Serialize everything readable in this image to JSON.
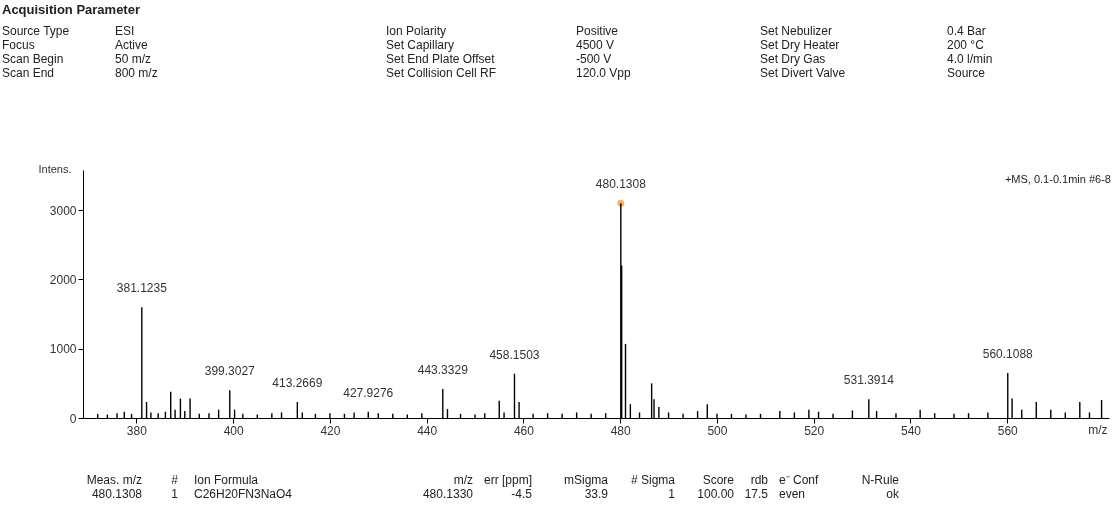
{
  "chart_data": {
    "type": "bar",
    "title": "Acquisition Parameter",
    "xlabel": "m/z",
    "ylabel": "Intens.",
    "x": [
      372,
      374,
      376,
      377.5,
      379,
      381.1235,
      382.1,
      383,
      384.5,
      386,
      387.1,
      388,
      389.1,
      390,
      391.1,
      393,
      395,
      397,
      399.3027,
      400.3,
      402,
      405,
      408,
      410,
      413.2669,
      414.3,
      417,
      420,
      423,
      425,
      427.9276,
      430,
      433,
      436,
      439,
      443.3329,
      444.3,
      447,
      450,
      452,
      455,
      456,
      458.1503,
      459.1,
      462,
      465,
      468,
      471,
      474,
      477,
      480.1308,
      480.3,
      481.1,
      482.1,
      484,
      486.5,
      487,
      488,
      490,
      493,
      496,
      498,
      500,
      503,
      506,
      509,
      513,
      516,
      519,
      521,
      524,
      528,
      531.3914,
      533,
      537,
      542,
      545,
      549,
      552,
      556,
      560.1088,
      561,
      563,
      566,
      569,
      572,
      575,
      577,
      579.5
    ],
    "series": [
      {
        "color": "#000000",
        "values": [
          60,
          50,
          70,
          90,
          60,
          1600,
          230,
          80,
          70,
          90,
          380,
          120,
          280,
          100,
          280,
          60,
          70,
          120,
          400,
          120,
          60,
          50,
          70,
          80,
          230,
          80,
          60,
          70,
          60,
          80,
          90,
          70,
          60,
          50,
          70,
          420,
          130,
          60,
          50,
          70,
          250,
          80,
          640,
          230,
          60,
          70,
          60,
          80,
          60,
          70,
          3100,
          2200,
          1070,
          200,
          80,
          500,
          270,
          160,
          80,
          60,
          100,
          200,
          60,
          60,
          50,
          60,
          100,
          80,
          120,
          90,
          60,
          110,
          270,
          100,
          70,
          120,
          70,
          60,
          70,
          80,
          650,
          280,
          120,
          230,
          120,
          80,
          230,
          80,
          260
        ]
      },
      {
        "type": "scatter",
        "color": "#f5a040",
        "x": [
          480.1308
        ],
        "values": [
          3100
        ]
      }
    ],
    "xlim": [
      370,
      580
    ],
    "ylim": [
      0,
      3580
    ],
    "xticks": [
      380,
      400,
      420,
      440,
      460,
      480,
      500,
      520,
      540,
      560
    ],
    "yticks": [
      0,
      1000,
      2000,
      3000
    ],
    "grid": false,
    "marker": "circle",
    "annotations": [
      {
        "text": "381.1235",
        "x": 381.1235,
        "y": 1600
      },
      {
        "text": "399.3027",
        "x": 399.3027,
        "y": 400
      },
      {
        "text": "413.2669",
        "x": 413.2669,
        "y": 230
      },
      {
        "text": "427.9276",
        "x": 427.9276,
        "y": 90
      },
      {
        "text": "443.3329",
        "x": 443.3329,
        "y": 420
      },
      {
        "text": "458.1503",
        "x": 458.1503,
        "y": 640
      },
      {
        "text": "480.1308",
        "x": 480.1308,
        "y": 3100
      },
      {
        "text": "531.3914",
        "x": 531.3914,
        "y": 270
      },
      {
        "text": "560.1088",
        "x": 560.1088,
        "y": 650
      },
      "+MS, 0.1-0.1min #6-8",
      "Source Type",
      "ESI",
      "Ion Polarity",
      "Positive",
      "Set Nebulizer",
      "0.4 Bar",
      "Focus",
      "Active",
      "Set Capillary",
      "4500 V",
      "Set Dry Heater",
      "200 °C",
      "Scan Begin",
      "50 m/z",
      "Set End Plate Offset",
      "-500 V",
      "Set Dry Gas",
      "4.0 l/min",
      "Scan End",
      "800 m/z",
      "Set Collision Cell RF",
      "120.0 Vpp",
      "Set Divert Valve",
      "Source",
      "Meas. m/z",
      "#",
      "Ion Formula",
      "m/z",
      "err [ppm]",
      "mSigma",
      "# Sigma",
      "Score",
      "rdb",
      "e⁻ Conf",
      "N-Rule",
      "480.1308",
      "1",
      "C26H20FN3NaO4",
      "480.1330",
      "-4.5",
      "33.9",
      "1",
      "100.00",
      "17.5",
      "even",
      "ok"
    ]
  }
}
